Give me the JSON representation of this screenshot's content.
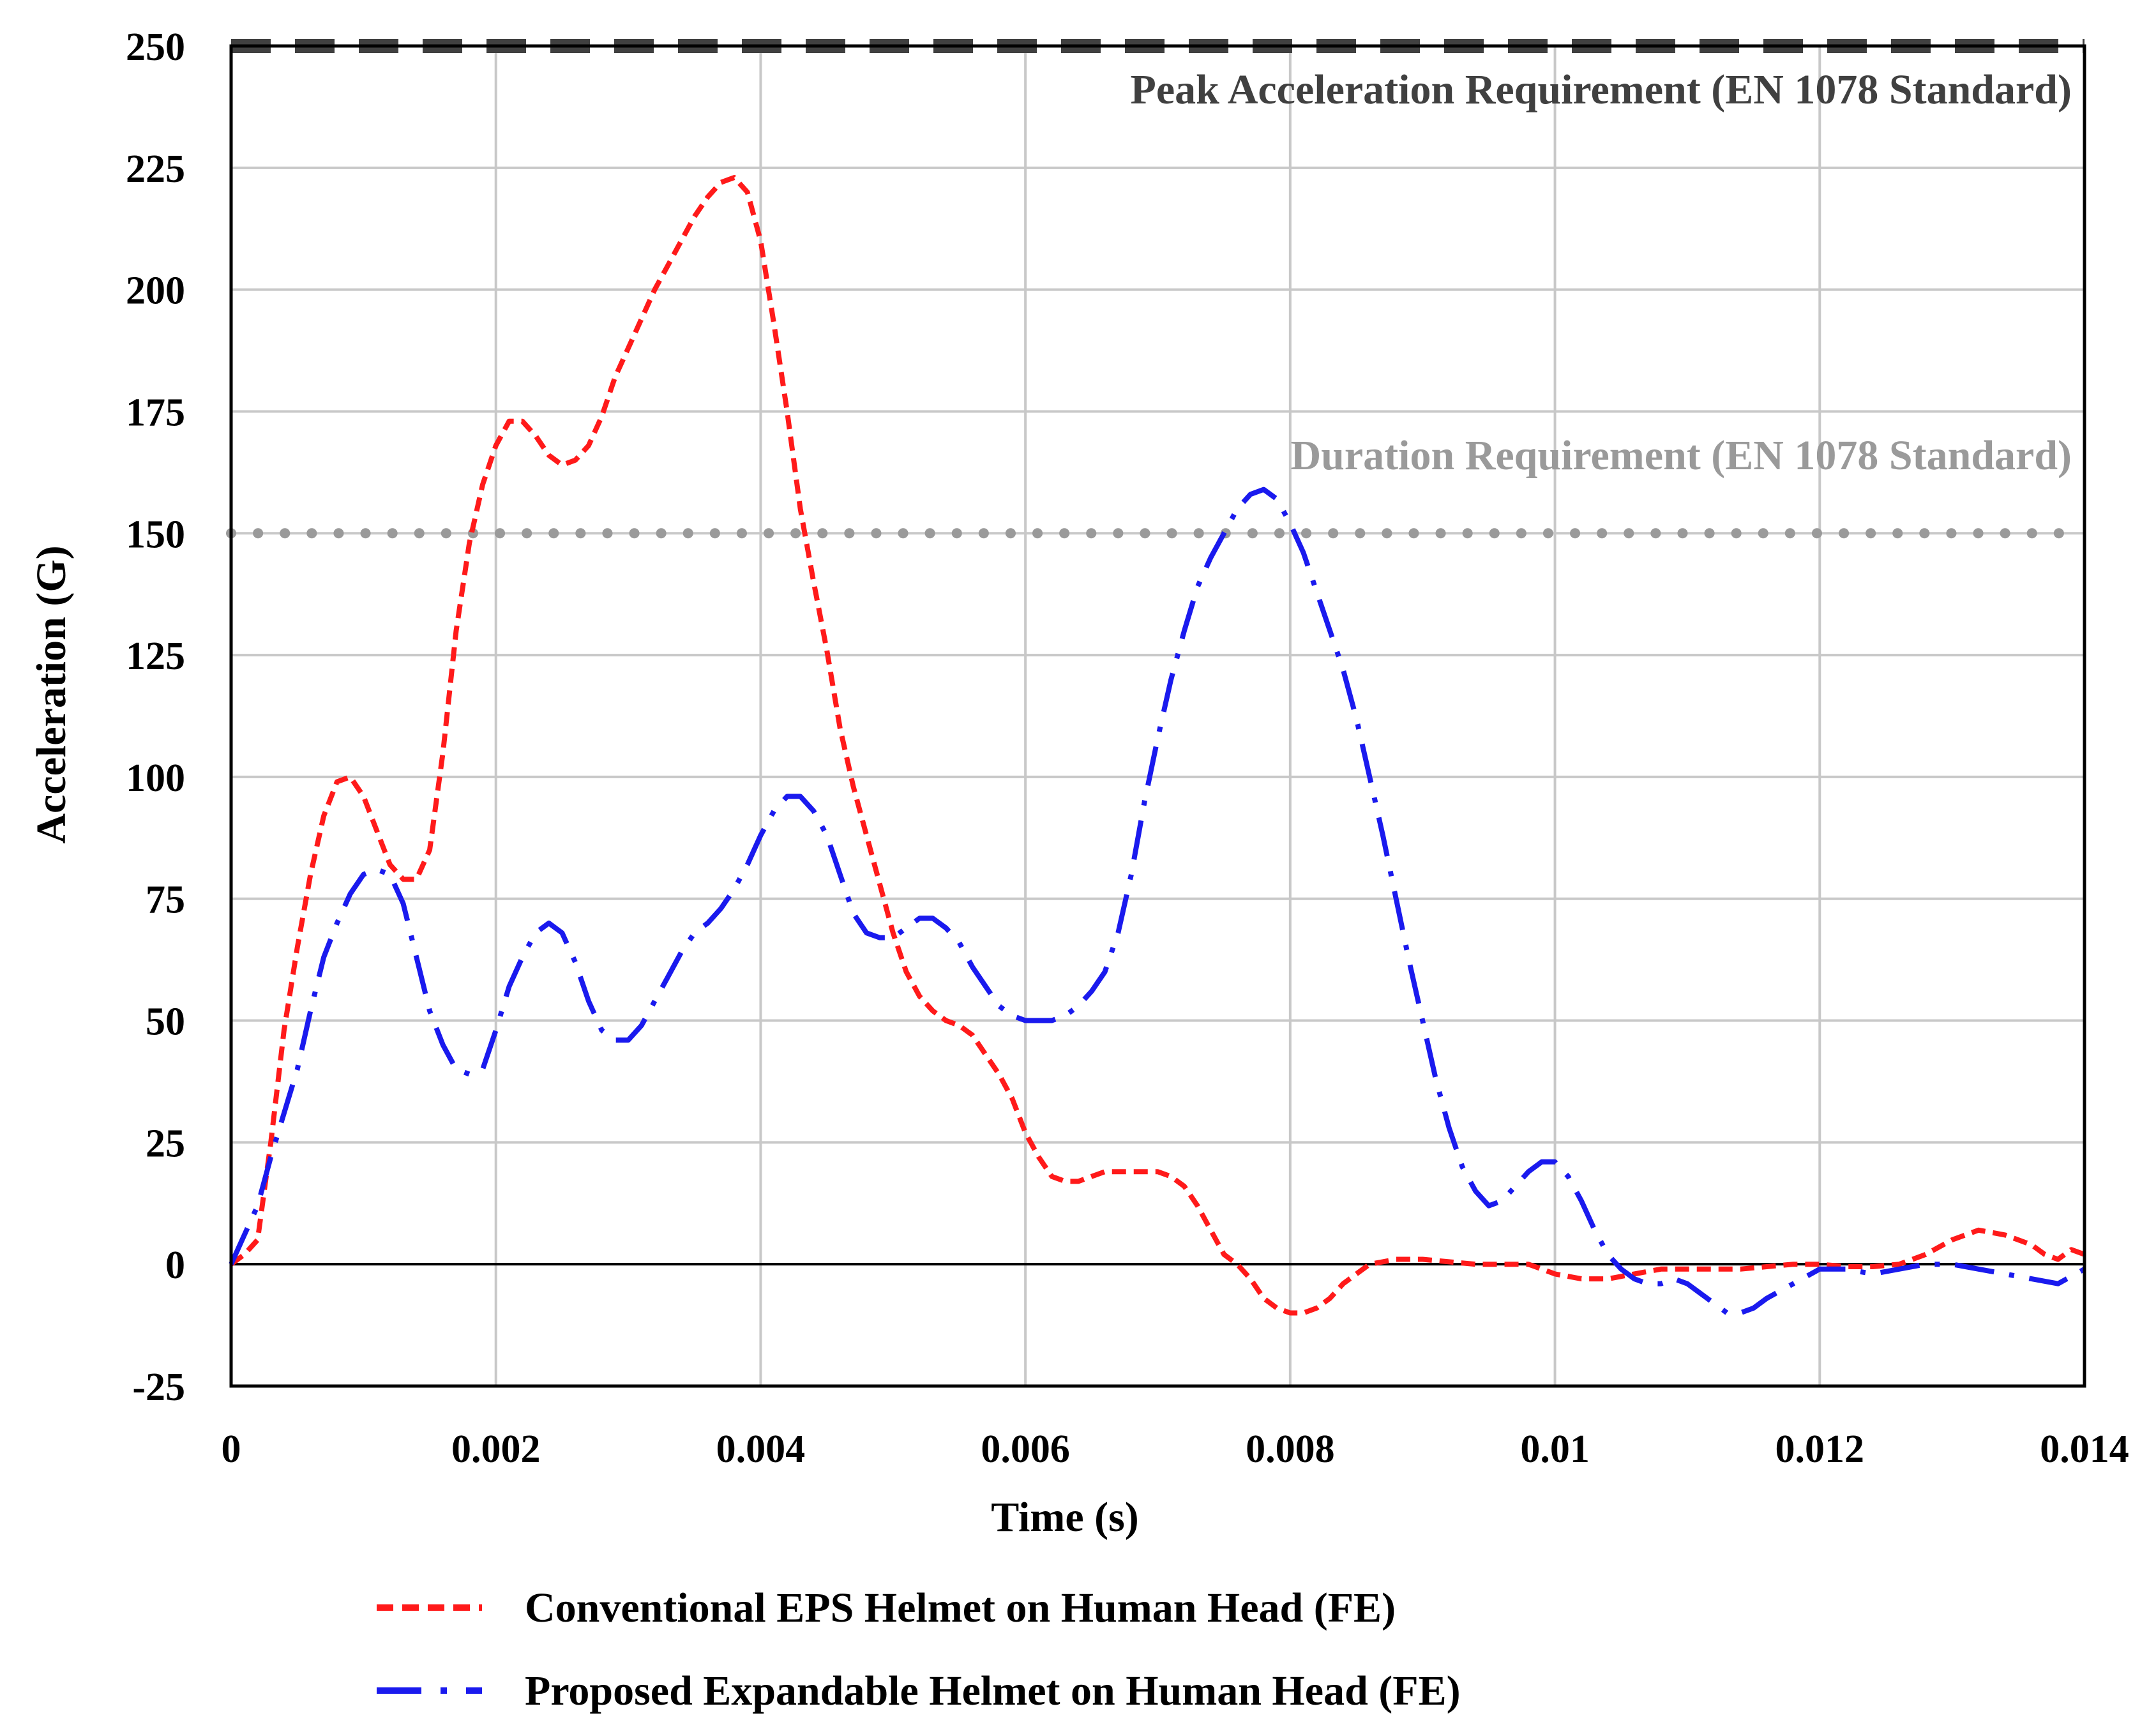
{
  "chart_data": {
    "type": "line",
    "xlabel": "Time (s)",
    "ylabel": "Acceleration (G)",
    "xlim": [
      0,
      0.014
    ],
    "ylim": [
      -25,
      250
    ],
    "grid": true,
    "legend_position": "bottom",
    "x_ticks": [
      0,
      0.002,
      0.004,
      0.006,
      0.008,
      0.01,
      0.012,
      0.014
    ],
    "x_tick_labels": [
      "0",
      "0.002",
      "0.004",
      "0.006",
      "0.008",
      "0.01",
      "0.012",
      "0.014"
    ],
    "y_ticks": [
      -25,
      0,
      25,
      50,
      75,
      100,
      125,
      150,
      175,
      200,
      225,
      250
    ],
    "y_tick_labels": [
      "-25",
      "0",
      "25",
      "50",
      "75",
      "100",
      "125",
      "150",
      "175",
      "200",
      "225",
      "250"
    ],
    "reference_lines": [
      {
        "label": "Peak Acceleration Requirement (EN 1078 Standard)",
        "y": 250,
        "style": "dashed",
        "color": "#404040"
      },
      {
        "label": "Duration Requirement (EN 1078 Standard)",
        "y": 150,
        "style": "dotted",
        "color": "#9a9a9a"
      }
    ],
    "series": [
      {
        "name": "Conventional EPS Helmet on Human Head (FE)",
        "color": "#ff1a1a",
        "style": "dashed",
        "points": [
          [
            0,
            0
          ],
          [
            0.0001,
            2
          ],
          [
            0.0002,
            5
          ],
          [
            0.0003,
            25
          ],
          [
            0.0004,
            48
          ],
          [
            0.0005,
            65
          ],
          [
            0.0006,
            80
          ],
          [
            0.0007,
            92
          ],
          [
            0.0008,
            99
          ],
          [
            0.0009,
            100
          ],
          [
            0.001,
            96
          ],
          [
            0.0011,
            89
          ],
          [
            0.0012,
            82
          ],
          [
            0.0013,
            79
          ],
          [
            0.0014,
            79
          ],
          [
            0.0015,
            85
          ],
          [
            0.0016,
            105
          ],
          [
            0.0017,
            130
          ],
          [
            0.0018,
            148
          ],
          [
            0.0019,
            160
          ],
          [
            0.002,
            168
          ],
          [
            0.0021,
            173
          ],
          [
            0.0022,
            173
          ],
          [
            0.0023,
            170
          ],
          [
            0.0024,
            166
          ],
          [
            0.0025,
            164
          ],
          [
            0.0026,
            165
          ],
          [
            0.0027,
            168
          ],
          [
            0.0028,
            174
          ],
          [
            0.0029,
            182
          ],
          [
            0.003,
            188
          ],
          [
            0.0031,
            194
          ],
          [
            0.0032,
            200
          ],
          [
            0.0033,
            205
          ],
          [
            0.0034,
            210
          ],
          [
            0.0035,
            215
          ],
          [
            0.0036,
            219
          ],
          [
            0.0037,
            222
          ],
          [
            0.0038,
            223
          ],
          [
            0.0039,
            220
          ],
          [
            0.004,
            210
          ],
          [
            0.0041,
            193
          ],
          [
            0.0042,
            175
          ],
          [
            0.0043,
            155
          ],
          [
            0.0044,
            140
          ],
          [
            0.0045,
            126
          ],
          [
            0.0046,
            110
          ],
          [
            0.0047,
            98
          ],
          [
            0.0048,
            88
          ],
          [
            0.0049,
            78
          ],
          [
            0.005,
            68
          ],
          [
            0.0051,
            60
          ],
          [
            0.0052,
            55
          ],
          [
            0.0053,
            52
          ],
          [
            0.0054,
            50
          ],
          [
            0.0055,
            49
          ],
          [
            0.0056,
            47
          ],
          [
            0.0057,
            43
          ],
          [
            0.0058,
            39
          ],
          [
            0.0059,
            34
          ],
          [
            0.006,
            27
          ],
          [
            0.0061,
            22
          ],
          [
            0.0062,
            18
          ],
          [
            0.0063,
            17
          ],
          [
            0.0064,
            17
          ],
          [
            0.0065,
            18
          ],
          [
            0.0066,
            19
          ],
          [
            0.0068,
            19
          ],
          [
            0.007,
            19
          ],
          [
            0.0071,
            18
          ],
          [
            0.0072,
            16
          ],
          [
            0.0073,
            12
          ],
          [
            0.0074,
            7
          ],
          [
            0.0075,
            2
          ],
          [
            0.0076,
            0
          ],
          [
            0.0077,
            -3
          ],
          [
            0.0078,
            -7
          ],
          [
            0.0079,
            -9
          ],
          [
            0.008,
            -10
          ],
          [
            0.0081,
            -10
          ],
          [
            0.0082,
            -9
          ],
          [
            0.0083,
            -7
          ],
          [
            0.0084,
            -4
          ],
          [
            0.0085,
            -2
          ],
          [
            0.0086,
            0
          ],
          [
            0.0088,
            1
          ],
          [
            0.009,
            1
          ],
          [
            0.0092,
            0.5
          ],
          [
            0.0094,
            0
          ],
          [
            0.0096,
            0
          ],
          [
            0.0098,
            0
          ],
          [
            0.01,
            -2
          ],
          [
            0.0102,
            -3
          ],
          [
            0.0104,
            -3
          ],
          [
            0.0106,
            -2
          ],
          [
            0.0108,
            -1
          ],
          [
            0.011,
            -1
          ],
          [
            0.0112,
            -1
          ],
          [
            0.0114,
            -1
          ],
          [
            0.0116,
            -0.5
          ],
          [
            0.0118,
            0
          ],
          [
            0.012,
            0
          ],
          [
            0.0122,
            -0.5
          ],
          [
            0.0124,
            -0.5
          ],
          [
            0.0126,
            0
          ],
          [
            0.0128,
            2
          ],
          [
            0.013,
            5
          ],
          [
            0.0132,
            7
          ],
          [
            0.0134,
            6
          ],
          [
            0.0136,
            4
          ],
          [
            0.0137,
            2
          ],
          [
            0.0138,
            1
          ],
          [
            0.0139,
            3
          ],
          [
            0.014,
            2
          ]
        ]
      },
      {
        "name": "Proposed Expandable Helmet on Human Head (FE)",
        "color": "#1a1aee",
        "style": "dashdot",
        "points": [
          [
            0,
            0
          ],
          [
            0.0001,
            6
          ],
          [
            0.0002,
            12
          ],
          [
            0.0003,
            22
          ],
          [
            0.0004,
            31
          ],
          [
            0.0005,
            40
          ],
          [
            0.0006,
            52
          ],
          [
            0.0007,
            63
          ],
          [
            0.0008,
            70
          ],
          [
            0.0009,
            76
          ],
          [
            0.001,
            80
          ],
          [
            0.0011,
            81
          ],
          [
            0.0012,
            80
          ],
          [
            0.0013,
            74
          ],
          [
            0.0014,
            63
          ],
          [
            0.0015,
            52
          ],
          [
            0.0016,
            45
          ],
          [
            0.0017,
            40
          ],
          [
            0.0018,
            39
          ],
          [
            0.0019,
            40
          ],
          [
            0.002,
            48
          ],
          [
            0.0021,
            57
          ],
          [
            0.0022,
            63
          ],
          [
            0.0023,
            68
          ],
          [
            0.0024,
            70
          ],
          [
            0.0025,
            68
          ],
          [
            0.0026,
            62
          ],
          [
            0.0027,
            54
          ],
          [
            0.0028,
            48
          ],
          [
            0.0029,
            46
          ],
          [
            0.003,
            46
          ],
          [
            0.0031,
            49
          ],
          [
            0.0032,
            54
          ],
          [
            0.0033,
            59
          ],
          [
            0.0034,
            64
          ],
          [
            0.0035,
            68
          ],
          [
            0.0036,
            70
          ],
          [
            0.0037,
            73
          ],
          [
            0.0038,
            77
          ],
          [
            0.0039,
            82
          ],
          [
            0.004,
            88
          ],
          [
            0.0041,
            93
          ],
          [
            0.0042,
            96
          ],
          [
            0.0043,
            96
          ],
          [
            0.0044,
            93
          ],
          [
            0.0045,
            88
          ],
          [
            0.0046,
            80
          ],
          [
            0.0047,
            72
          ],
          [
            0.0048,
            68
          ],
          [
            0.0049,
            67
          ],
          [
            0.005,
            67
          ],
          [
            0.0051,
            69
          ],
          [
            0.0052,
            71
          ],
          [
            0.0053,
            71
          ],
          [
            0.0054,
            69
          ],
          [
            0.0055,
            66
          ],
          [
            0.0056,
            61
          ],
          [
            0.0057,
            57
          ],
          [
            0.0058,
            53
          ],
          [
            0.0059,
            51
          ],
          [
            0.006,
            50
          ],
          [
            0.0061,
            50
          ],
          [
            0.0062,
            50
          ],
          [
            0.0063,
            51
          ],
          [
            0.0064,
            53
          ],
          [
            0.0065,
            56
          ],
          [
            0.0066,
            60
          ],
          [
            0.0067,
            68
          ],
          [
            0.0068,
            80
          ],
          [
            0.0069,
            95
          ],
          [
            0.007,
            108
          ],
          [
            0.0071,
            120
          ],
          [
            0.0072,
            130
          ],
          [
            0.0073,
            139
          ],
          [
            0.0074,
            145
          ],
          [
            0.0075,
            150
          ],
          [
            0.0076,
            155
          ],
          [
            0.0077,
            158
          ],
          [
            0.0078,
            159
          ],
          [
            0.0079,
            157
          ],
          [
            0.008,
            152
          ],
          [
            0.0081,
            146
          ],
          [
            0.0082,
            138
          ],
          [
            0.0083,
            130
          ],
          [
            0.0084,
            122
          ],
          [
            0.0085,
            112
          ],
          [
            0.0086,
            100
          ],
          [
            0.0087,
            88
          ],
          [
            0.0088,
            75
          ],
          [
            0.0089,
            62
          ],
          [
            0.009,
            50
          ],
          [
            0.0091,
            38
          ],
          [
            0.0092,
            28
          ],
          [
            0.0093,
            20
          ],
          [
            0.0094,
            15
          ],
          [
            0.0095,
            12
          ],
          [
            0.0096,
            13
          ],
          [
            0.0097,
            16
          ],
          [
            0.0098,
            19
          ],
          [
            0.0099,
            21
          ],
          [
            0.01,
            21
          ],
          [
            0.0101,
            18
          ],
          [
            0.0102,
            13
          ],
          [
            0.0103,
            7
          ],
          [
            0.0104,
            2
          ],
          [
            0.0105,
            -1
          ],
          [
            0.0106,
            -3
          ],
          [
            0.0107,
            -4
          ],
          [
            0.0108,
            -4
          ],
          [
            0.0109,
            -3
          ],
          [
            0.011,
            -4
          ],
          [
            0.0111,
            -6
          ],
          [
            0.0112,
            -8
          ],
          [
            0.0113,
            -10
          ],
          [
            0.0114,
            -10
          ],
          [
            0.0115,
            -9
          ],
          [
            0.0116,
            -7
          ],
          [
            0.0118,
            -4
          ],
          [
            0.012,
            -1
          ],
          [
            0.0122,
            -1
          ],
          [
            0.0124,
            -2
          ],
          [
            0.0126,
            -1
          ],
          [
            0.0128,
            0
          ],
          [
            0.013,
            0
          ],
          [
            0.0132,
            -1
          ],
          [
            0.0134,
            -2
          ],
          [
            0.0136,
            -3
          ],
          [
            0.0138,
            -4
          ],
          [
            0.014,
            -1
          ]
        ]
      }
    ]
  }
}
